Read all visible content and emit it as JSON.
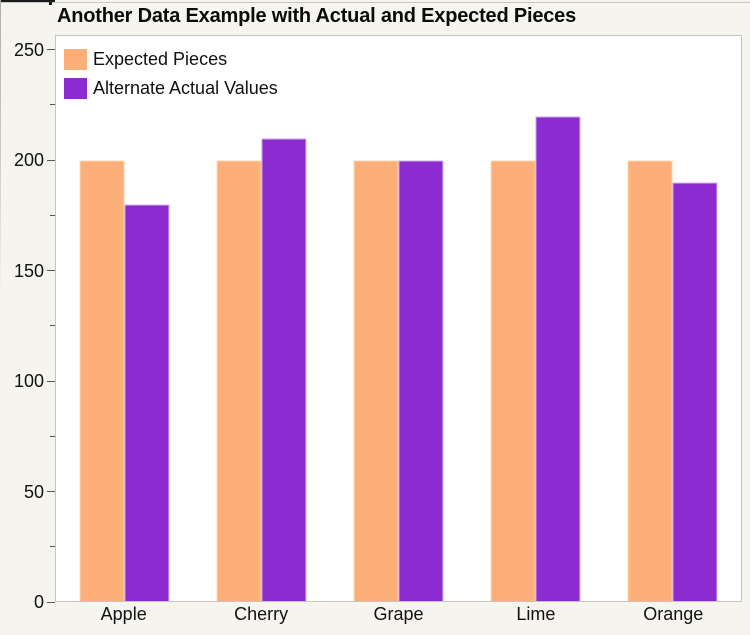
{
  "page": {
    "background_color": "#F6F4EF",
    "plot_background_color": "#FFFFFF",
    "plot_border_color": "#C6C4BF"
  },
  "chart_data": {
    "type": "bar",
    "title": "Another Data Example with Actual and Expected Pieces",
    "categories": [
      "Apple",
      "Cherry",
      "Grape",
      "Lime",
      "Orange"
    ],
    "series": [
      {
        "name": "Expected Pieces",
        "color": "#FCAF79",
        "edge_color": "#FDD0A8",
        "values": [
          200,
          200,
          200,
          200,
          200
        ]
      },
      {
        "name": "Alternate Actual Values",
        "color": "#8C2BD0",
        "edge_color": "#C9A2E3",
        "values": [
          180,
          210,
          200,
          220,
          190
        ]
      }
    ],
    "xlabel": "",
    "ylabel": "",
    "ylim": [
      0,
      250
    ],
    "yticks_major": [
      0,
      50,
      100,
      150,
      200,
      250
    ],
    "yticks_minor": [
      25,
      75,
      125,
      175,
      225
    ],
    "legend_position": "top-left-inside",
    "grid": false
  }
}
